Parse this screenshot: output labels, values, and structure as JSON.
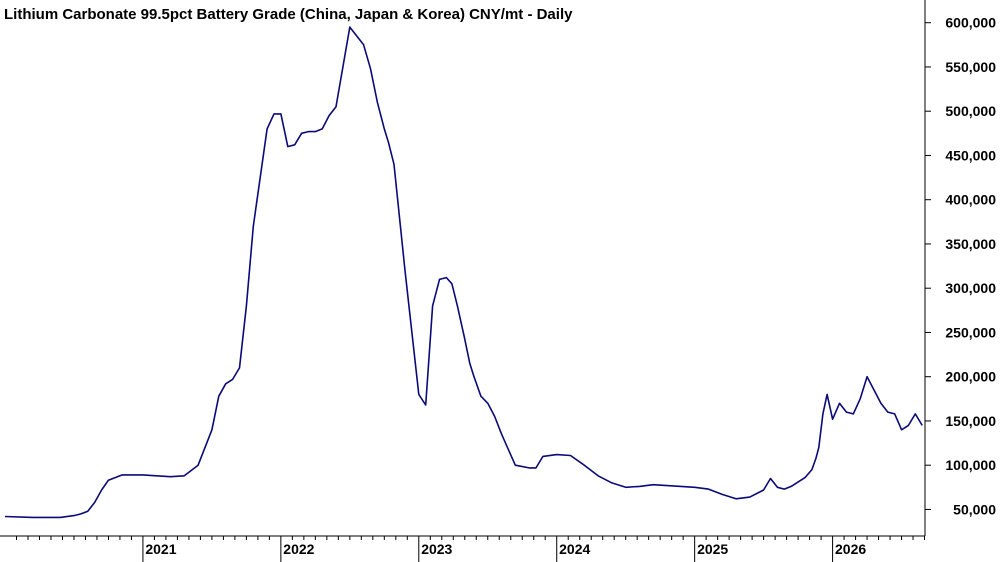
{
  "chart_data": {
    "type": "line",
    "title": "Lithium Carbonate 99.5pct Battery Grade (China, Japan & Korea) CNY/mt - Daily",
    "xlabel": "",
    "ylabel": "",
    "y_axis_position": "right",
    "ylim": [
      20000,
      620000
    ],
    "yticks": [
      50000,
      100000,
      150000,
      200000,
      250000,
      300000,
      350000,
      400000,
      450000,
      500000,
      550000,
      600000
    ],
    "ytick_labels": [
      "50,000",
      "100,000",
      "150,000",
      "200,000",
      "250,000",
      "300,000",
      "350,000",
      "400,000",
      "450,000",
      "500,000",
      "550,000",
      "600,000"
    ],
    "xlim": [
      2020.0,
      2026.67
    ],
    "xticks": [
      2021,
      2022,
      2023,
      2024,
      2025,
      2026
    ],
    "xtick_labels": [
      "2021",
      "2022",
      "2023",
      "2024",
      "2025",
      "2026"
    ],
    "grid": false,
    "legend": "none",
    "line_color": "#0a0a78",
    "series": [
      {
        "x": [
          2020.0,
          2020.2,
          2020.4,
          2020.5,
          2020.55,
          2020.6,
          2020.65,
          2020.7,
          2020.75,
          2020.85,
          2021.0,
          2021.1,
          2021.2,
          2021.3,
          2021.4,
          2021.5,
          2021.55,
          2021.6,
          2021.65,
          2021.7,
          2021.75,
          2021.8,
          2021.9,
          2021.95,
          2022.0,
          2022.05,
          2022.1,
          2022.15,
          2022.2,
          2022.25,
          2022.3,
          2022.35,
          2022.4,
          2022.5,
          2022.6,
          2022.65,
          2022.7,
          2022.75,
          2022.78,
          2022.82,
          2022.9,
          2023.0,
          2023.05,
          2023.1,
          2023.15,
          2023.2,
          2023.24,
          2023.28,
          2023.33,
          2023.37,
          2023.4,
          2023.45,
          2023.5,
          2023.55,
          2023.6,
          2023.7,
          2023.8,
          2023.85,
          2023.9,
          2024.0,
          2024.1,
          2024.2,
          2024.3,
          2024.4,
          2024.5,
          2024.6,
          2024.7,
          2024.8,
          2024.9,
          2025.0,
          2025.1,
          2025.2,
          2025.3,
          2025.4,
          2025.5,
          2025.55,
          2025.6,
          2025.65,
          2025.7,
          2025.8,
          2025.85,
          2025.88,
          2025.9,
          2025.93,
          2025.96,
          2026.0,
          2026.05,
          2026.1,
          2026.15,
          2026.2,
          2026.25,
          2026.3,
          2026.35,
          2026.4,
          2026.45,
          2026.5,
          2026.55,
          2026.6,
          2026.65
        ],
        "y": [
          42000,
          41000,
          41000,
          43000,
          45000,
          48000,
          58000,
          72000,
          83000,
          89000,
          89000,
          88000,
          87000,
          88000,
          100000,
          140000,
          178000,
          192000,
          197000,
          210000,
          280000,
          370000,
          480000,
          497000,
          497000,
          460000,
          462000,
          475000,
          477000,
          477000,
          480000,
          495000,
          505000,
          595000,
          575000,
          548000,
          510000,
          480000,
          465000,
          440000,
          320000,
          180000,
          168000,
          280000,
          310000,
          312000,
          305000,
          280000,
          245000,
          215000,
          200000,
          178000,
          170000,
          155000,
          135000,
          100000,
          97000,
          97000,
          110000,
          112000,
          111000,
          100000,
          88000,
          80000,
          75000,
          76000,
          78000,
          77000,
          76000,
          75000,
          73000,
          67000,
          62000,
          64000,
          72000,
          85000,
          75000,
          73000,
          76000,
          86000,
          95000,
          108000,
          120000,
          158000,
          180000,
          152000,
          170000,
          160000,
          158000,
          175000,
          200000,
          185000,
          170000,
          160000,
          158000,
          140000,
          145000,
          158000,
          145000
        ]
      }
    ]
  }
}
